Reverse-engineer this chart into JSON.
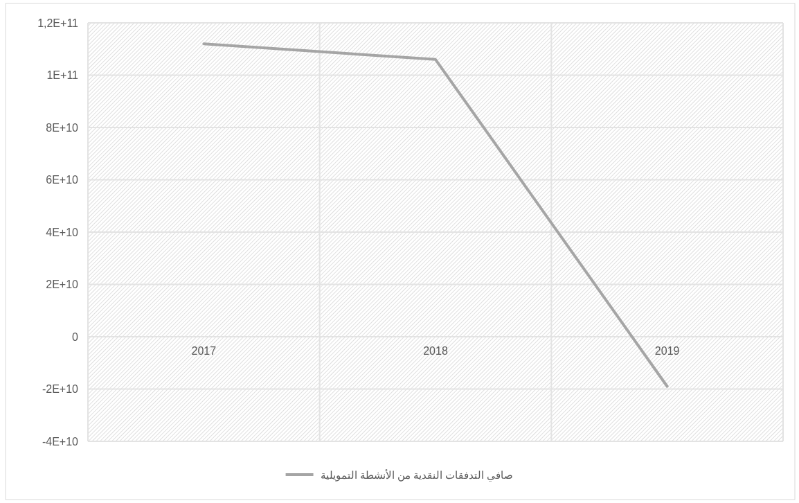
{
  "chart_data": {
    "type": "line",
    "categories": [
      "2017",
      "2018",
      "2019"
    ],
    "series": [
      {
        "name": "صافي التدفقات النقدية من الأنشطة التمويلية",
        "color": "#a5a5a5",
        "values": [
          112000000000.0,
          106000000000.0,
          -19000000000.0
        ]
      }
    ],
    "ylim": [
      -40000000000.0,
      120000000000.0
    ],
    "yticks": [
      {
        "value": -40000000000.0,
        "label": "-4E+10"
      },
      {
        "value": -20000000000.0,
        "label": "-2E+10"
      },
      0,
      {
        "value": 20000000000.0,
        "label": "2E+10"
      },
      {
        "value": 40000000000.0,
        "label": "4E+10"
      },
      {
        "value": 60000000000.0,
        "label": "6E+10"
      },
      {
        "value": 80000000000.0,
        "label": "8E+10"
      },
      {
        "value": 100000000000.0,
        "label": "1E+11"
      },
      {
        "value": 120000000000.0,
        "label": "1,2E+11"
      }
    ],
    "grid": true,
    "legend": "bottom",
    "marker": "none",
    "line_style": "solid"
  }
}
